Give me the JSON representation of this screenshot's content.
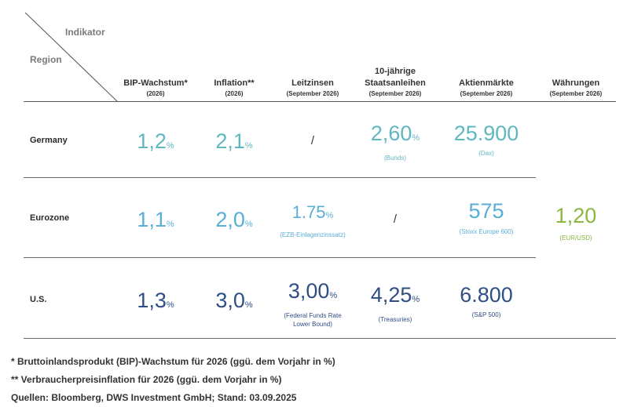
{
  "corner": {
    "top": "Indikator",
    "left": "Region"
  },
  "columns": [
    {
      "main": "BIP-Wachstum*",
      "sub": "(2026)"
    },
    {
      "main": "Inflation**",
      "sub": "(2026)"
    },
    {
      "main": "Leitzinsen",
      "sub": "(September 2026)"
    },
    {
      "main": "10-jährige",
      "main2": "Staatsanleihen",
      "sub": "(September 2026)"
    },
    {
      "main": "Aktienmärkte",
      "sub": "(September 2026)"
    },
    {
      "main": "Währungen",
      "sub": "(September 2026)"
    }
  ],
  "rows": [
    {
      "label": "Germany",
      "gdp": {
        "value": "1,2",
        "unit": "%"
      },
      "inflation": {
        "value": "2,1",
        "unit": "%"
      },
      "rates": {
        "text": "/"
      },
      "bonds": {
        "value": "2,60",
        "unit": "%",
        "note": "(Bunds)"
      },
      "equities": {
        "value": "25.900",
        "note": "(Dax)"
      }
    },
    {
      "label": "Eurozone",
      "gdp": {
        "value": "1,1",
        "unit": "%"
      },
      "inflation": {
        "value": "2,0",
        "unit": "%"
      },
      "rates": {
        "value": "1.75",
        "unit": "%",
        "note": "(EZB-Einlagenzinssatz)"
      },
      "bonds": {
        "text": "/"
      },
      "equities": {
        "value": "575",
        "note": "(Stoxx Europe 600)"
      },
      "currency": {
        "value": "1,20",
        "note": "(EUR/USD)"
      }
    },
    {
      "label": "U.S.",
      "gdp": {
        "value": "1,3",
        "unit": "%"
      },
      "inflation": {
        "value": "3,0",
        "unit": "%"
      },
      "rates": {
        "value": "3,00",
        "unit": "%",
        "note": "(Federal Funds Rate",
        "note2": "Lower Bound)"
      },
      "bonds": {
        "value": "4,25",
        "unit": "%",
        "note": "(Treasuries)"
      },
      "equities": {
        "value": "6.800",
        "note": "(S&P 500)"
      }
    }
  ],
  "footnotes": [
    "* Bruttoinlandsprodukt (BIP)-Wachstum für 2026 (ggü. dem Vorjahr in %)",
    "** Verbraucherpreisinflation für 2026 (ggü. dem Vorjahr in %)",
    "Quellen: Bloomberg, DWS Investment GmbH; Stand: 03.09.2025"
  ],
  "colors": {
    "teal": "#5fb7c0",
    "light_blue": "#5aaed6",
    "navy": "#2f4e86",
    "green": "#8ab73f"
  }
}
